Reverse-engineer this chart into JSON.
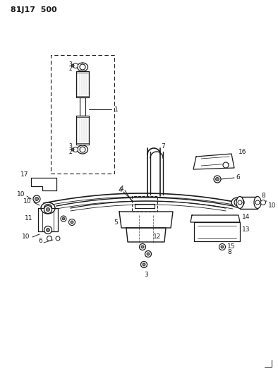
{
  "title": "81J17  500",
  "bg_color": "#ffffff",
  "line_color": "#1a1a1a",
  "text_color": "#1a1a1a",
  "fig_width": 3.94,
  "fig_height": 5.33,
  "dpi": 100
}
